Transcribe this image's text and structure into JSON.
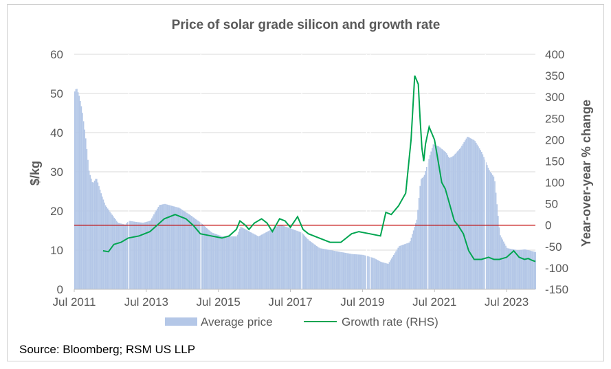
{
  "chart_data": {
    "type": "area",
    "title": "Price of solar grade silicon and growth rate",
    "ylabel": "$/kg",
    "y2label": "Year-over-year % change",
    "ylim": [
      0,
      60
    ],
    "y2lim": [
      -150,
      400
    ],
    "y_ticks": [
      "0",
      "10",
      "20",
      "30",
      "40",
      "50",
      "60"
    ],
    "y2_ticks": [
      "-150",
      "-100",
      "-50",
      "0",
      "50",
      "100",
      "150",
      "200",
      "250",
      "300",
      "350",
      "400"
    ],
    "x_ticks": [
      "Jul 2011",
      "Jul 2013",
      "Jul 2015",
      "Jul 2017",
      "Jul 2019",
      "Jul 2021",
      "Jul 2023"
    ],
    "xlim": [
      2011.5,
      2024.3
    ],
    "reference_line_rhs": 0,
    "colors": {
      "price": "#b4c7e7",
      "growth": "#00a550",
      "zero_line": "#c00000",
      "text": "#595959"
    },
    "series": [
      {
        "name": "Average price",
        "axis": "left",
        "x": [
          2011.5,
          2011.55,
          2011.62,
          2011.7,
          2011.8,
          2011.9,
          2012.0,
          2012.1,
          2012.15,
          2012.25,
          2012.35,
          2012.5,
          2012.7,
          2012.9,
          2013.0,
          2013.2,
          2013.4,
          2013.6,
          2013.75,
          2013.85,
          2014.0,
          2014.2,
          2014.4,
          2014.7,
          2015.0,
          2015.3,
          2015.6,
          2016.0,
          2016.1,
          2016.3,
          2016.6,
          2016.9,
          2017.2,
          2017.5,
          2017.8,
          2018.0,
          2018.3,
          2018.6,
          2018.9,
          2019.2,
          2019.5,
          2019.8,
          2020.0,
          2020.2,
          2020.5,
          2020.8,
          2021.0,
          2021.1,
          2021.2,
          2021.35,
          2021.45,
          2021.6,
          2021.8,
          2021.9,
          2022.0,
          2022.2,
          2022.4,
          2022.6,
          2022.8,
          2023.0,
          2023.15,
          2023.3,
          2023.5,
          2023.8,
          2024.0,
          2024.3
        ],
        "values": [
          50.5,
          51.5,
          49.5,
          46,
          39,
          30,
          27,
          28.5,
          27,
          24,
          21.5,
          19.5,
          17,
          16.5,
          17.5,
          17.2,
          17,
          17.5,
          20,
          21.5,
          21.8,
          21.3,
          20.8,
          19,
          17,
          14.5,
          13.5,
          13.5,
          16,
          15,
          13.5,
          15,
          16.5,
          15.5,
          14.5,
          12.5,
          10.5,
          10,
          9.5,
          9,
          8.8,
          8,
          7,
          6.5,
          11,
          12,
          18,
          28,
          29,
          34,
          37,
          36.5,
          35,
          33.5,
          34,
          36,
          39,
          38,
          35,
          30.5,
          28.5,
          14,
          10.5,
          10,
          10.2,
          9.5
        ]
      },
      {
        "name": "Growth rate (RHS)",
        "axis": "right",
        "x": [
          2012.3,
          2012.45,
          2012.6,
          2012.8,
          2013.0,
          2013.3,
          2013.6,
          2013.8,
          2014.0,
          2014.3,
          2014.6,
          2014.8,
          2015.0,
          2015.3,
          2015.6,
          2015.8,
          2016.0,
          2016.1,
          2016.25,
          2016.35,
          2016.5,
          2016.7,
          2016.85,
          2017.0,
          2017.2,
          2017.35,
          2017.5,
          2017.7,
          2017.85,
          2018.0,
          2018.3,
          2018.6,
          2018.9,
          2019.2,
          2019.4,
          2019.7,
          2020.0,
          2020.15,
          2020.3,
          2020.5,
          2020.7,
          2020.85,
          2020.95,
          2021.05,
          2021.1,
          2021.15,
          2021.2,
          2021.25,
          2021.35,
          2021.5,
          2021.6,
          2021.7,
          2021.8,
          2021.95,
          2022.05,
          2022.15,
          2022.3,
          2022.45,
          2022.6,
          2022.8,
          2023.0,
          2023.15,
          2023.3,
          2023.5,
          2023.7,
          2023.85,
          2024.0,
          2024.1,
          2024.2,
          2024.3
        ],
        "values": [
          -60,
          -62,
          -45,
          -40,
          -30,
          -25,
          -15,
          0,
          15,
          25,
          15,
          0,
          -20,
          -25,
          -30,
          -25,
          -10,
          10,
          0,
          -10,
          5,
          15,
          5,
          -15,
          15,
          10,
          -5,
          20,
          -10,
          -20,
          -30,
          -40,
          -40,
          -20,
          -15,
          -20,
          -25,
          30,
          25,
          45,
          75,
          200,
          350,
          330,
          250,
          180,
          150,
          190,
          230,
          200,
          150,
          100,
          85,
          40,
          10,
          0,
          -20,
          -60,
          -80,
          -80,
          -75,
          -80,
          -80,
          -75,
          -60,
          -75,
          -80,
          -78,
          -82,
          -85
        ]
      }
    ],
    "legend": [
      "Average price",
      "Growth rate (RHS)"
    ],
    "legend_position": "bottom"
  },
  "footer": {
    "source": "Source: Bloomberg; RSM US LLP"
  }
}
